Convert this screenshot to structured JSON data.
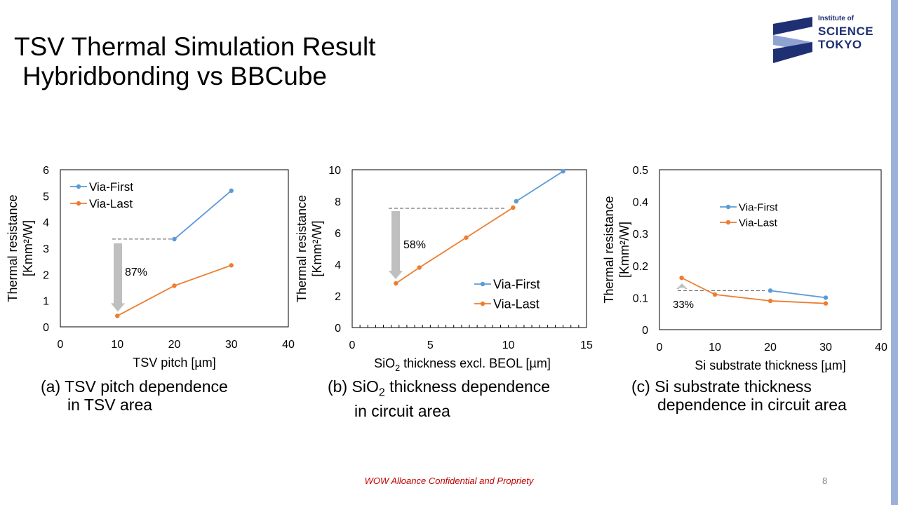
{
  "slide": {
    "title_line1": "TSV Thermal Simulation Result",
    "title_line2": "Hybridbonding vs BBCube",
    "footer": "WOW Alloance Confidential and Propriety",
    "page_number": "8"
  },
  "logo": {
    "line1": "Institute of",
    "line2": "SCIENCE",
    "line3": "TOKYO",
    "color": "#1f2f73"
  },
  "colors": {
    "via_first": "#5b9bd5",
    "via_last": "#ed7d31",
    "arrow": "#bfbfbf"
  },
  "chart_data": [
    {
      "type": "line",
      "caption_line1": "(a) TSV pitch dependence",
      "caption_line2": "in TSV area",
      "xlabel": "TSV pitch [µm]",
      "ylabel_line1": "Thermal resistance",
      "ylabel_line2": "[Kmm²/W]",
      "xlim": [
        0,
        40
      ],
      "ylim": [
        0,
        6
      ],
      "xticks": [
        "0",
        "10",
        "20",
        "30",
        "40"
      ],
      "yticks": [
        "0",
        "1",
        "2",
        "3",
        "4",
        "5",
        "6"
      ],
      "legend_position": "top-left",
      "annotation": "87%",
      "series": [
        {
          "name": "Via-First",
          "x": [
            20,
            30
          ],
          "y": [
            3.35,
            5.2
          ]
        },
        {
          "name": "Via-Last",
          "x": [
            10,
            20,
            30
          ],
          "y": [
            0.42,
            1.57,
            2.35
          ]
        }
      ]
    },
    {
      "type": "line",
      "caption_line1": "(b) SiO2 thickness dependence",
      "caption_line2": "in circuit area",
      "xlabel": "SiO2 thickness excl. BEOL [µm]",
      "ylabel_line1": "Thermal resistance",
      "ylabel_line2": "[Kmm²/W]",
      "xlim": [
        0,
        15
      ],
      "ylim": [
        0,
        10
      ],
      "xticks": [
        "0",
        "5",
        "10",
        "15"
      ],
      "yticks": [
        "0",
        "2",
        "4",
        "6",
        "8",
        "10"
      ],
      "legend_position": "bottom-right",
      "annotation": "58%",
      "series": [
        {
          "name": "Via-First",
          "x": [
            10.5,
            13.5
          ],
          "y": [
            8.0,
            9.9
          ]
        },
        {
          "name": "Via-Last",
          "x": [
            2.8,
            4.3,
            7.3,
            10.3
          ],
          "y": [
            2.8,
            3.8,
            5.7,
            7.6
          ]
        }
      ]
    },
    {
      "type": "line",
      "caption_line1": "(c) Si substrate thickness",
      "caption_line2": "dependence in circuit area",
      "xlabel": "Si substrate thickness [µm]",
      "ylabel_line1": "Thermal resistance",
      "ylabel_line2": "[Kmm²/W]",
      "xlim": [
        0,
        40
      ],
      "ylim": [
        0,
        0.5
      ],
      "xticks": [
        "0",
        "10",
        "20",
        "30",
        "40"
      ],
      "yticks": [
        "0",
        "0.1",
        "0.2",
        "0.3",
        "0.4",
        "0.5"
      ],
      "legend_position": "top-center",
      "annotation": "33%",
      "series": [
        {
          "name": "Via-First",
          "x": [
            20,
            30
          ],
          "y": [
            0.122,
            0.1
          ]
        },
        {
          "name": "Via-Last",
          "x": [
            4,
            10,
            20,
            30
          ],
          "y": [
            0.162,
            0.11,
            0.09,
            0.082
          ]
        }
      ]
    }
  ]
}
